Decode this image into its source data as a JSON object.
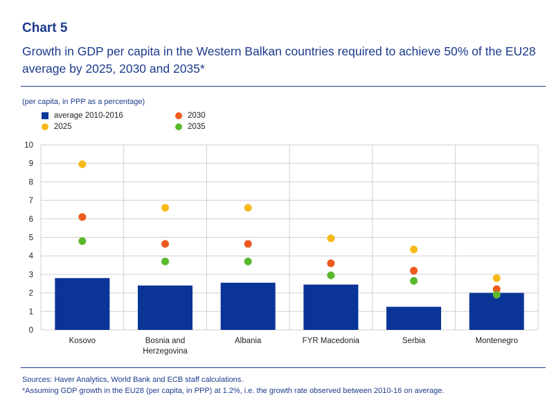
{
  "header": {
    "chart_number": "Chart 5",
    "title": "Growth in GDP per capita in the Western Balkan countries required to achieve 50% of the EU28 average by 2025, 2030 and 2035*",
    "unit": "(per capita, in PPP as a percentage)"
  },
  "footer": {
    "sources": "Sources: Haver Analytics, World Bank and ECB staff calculations.",
    "note": "*Assuming GDP growth in the EU28 (per capita, in PPP) at 1.2%, i.e. the growth rate observed between 2010-16 on average."
  },
  "colors": {
    "bar": "#0a3496",
    "y2025": "#f6b91a",
    "y2030": "#ee5a1e",
    "y2035": "#5bb82d",
    "grid": "#cfcfcf",
    "title": "#1b3a8c"
  },
  "chart_data": {
    "type": "bar",
    "categories": [
      "Kosovo",
      "Bosnia and Herzegovina",
      "Albania",
      "FYR Macedonia",
      "Serbia",
      "Montenegro"
    ],
    "category_lines": [
      [
        "Kosovo"
      ],
      [
        "Bosnia and",
        "Herzegovina"
      ],
      [
        "Albania"
      ],
      [
        "FYR Macedonia"
      ],
      [
        "Serbia"
      ],
      [
        "Montenegro"
      ]
    ],
    "series": [
      {
        "name": "average 2010-2016",
        "kind": "bar",
        "values": [
          2.8,
          2.4,
          2.55,
          2.45,
          1.25,
          2.0
        ]
      },
      {
        "name": "2025",
        "kind": "dot",
        "values": [
          8.95,
          6.6,
          6.6,
          4.95,
          4.35,
          2.8
        ]
      },
      {
        "name": "2030",
        "kind": "dot",
        "values": [
          6.1,
          4.65,
          4.65,
          3.6,
          3.2,
          2.2
        ]
      },
      {
        "name": "2035",
        "kind": "dot",
        "values": [
          4.8,
          3.7,
          3.7,
          2.95,
          2.65,
          1.9
        ]
      }
    ],
    "yticks": [
      0,
      1,
      2,
      3,
      4,
      5,
      6,
      7,
      8,
      9,
      10
    ],
    "ylim": [
      0,
      10
    ],
    "grid": true,
    "legend_position": "top-left"
  }
}
